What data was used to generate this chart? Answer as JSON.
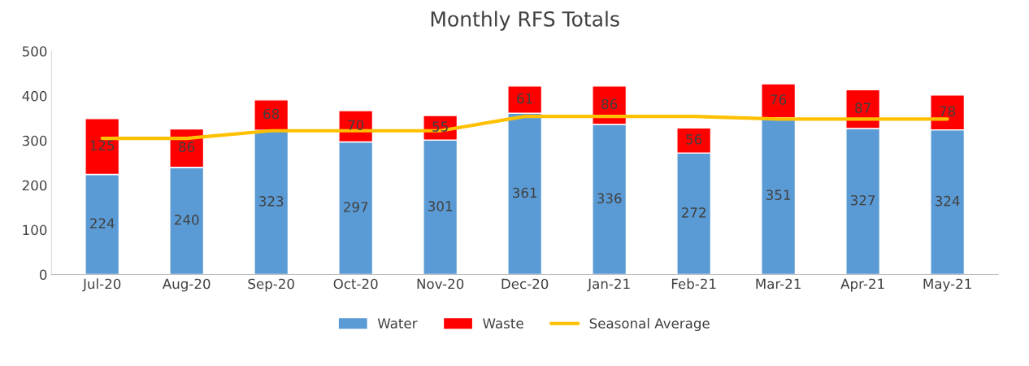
{
  "chart_data": {
    "type": "bar",
    "title": "Monthly RFS Totals",
    "stacked": true,
    "categories": [
      "Jul-20",
      "Aug-20",
      "Sep-20",
      "Oct-20",
      "Nov-20",
      "Dec-20",
      "Jan-21",
      "Feb-21",
      "Mar-21",
      "Apr-21",
      "May-21"
    ],
    "series": [
      {
        "name": "Water",
        "color": "#5b9bd5",
        "values": [
          224,
          240,
          323,
          297,
          301,
          361,
          336,
          272,
          351,
          327,
          324
        ],
        "value_labels": [
          "224",
          "240",
          "323",
          "297",
          "301",
          "361",
          "336",
          "272",
          "351",
          "327",
          "324"
        ]
      },
      {
        "name": "Waste",
        "color": "#ff0000",
        "values": [
          125,
          86,
          68,
          70,
          55,
          61,
          86,
          56,
          76,
          87,
          78
        ],
        "value_labels": [
          "125",
          "86",
          "68",
          "70",
          "55",
          "61",
          "86",
          "56",
          "76",
          "87",
          "78"
        ]
      },
      {
        "name": "Seasonal Average",
        "type": "line",
        "color": "#ffc000",
        "values": [
          305,
          305,
          322,
          322,
          322,
          354,
          354,
          354,
          348,
          348,
          348
        ]
      }
    ],
    "ylim": [
      0,
      500
    ],
    "yticks": [
      0,
      100,
      200,
      300,
      400,
      500
    ],
    "grid": false,
    "legend": "bottom"
  }
}
